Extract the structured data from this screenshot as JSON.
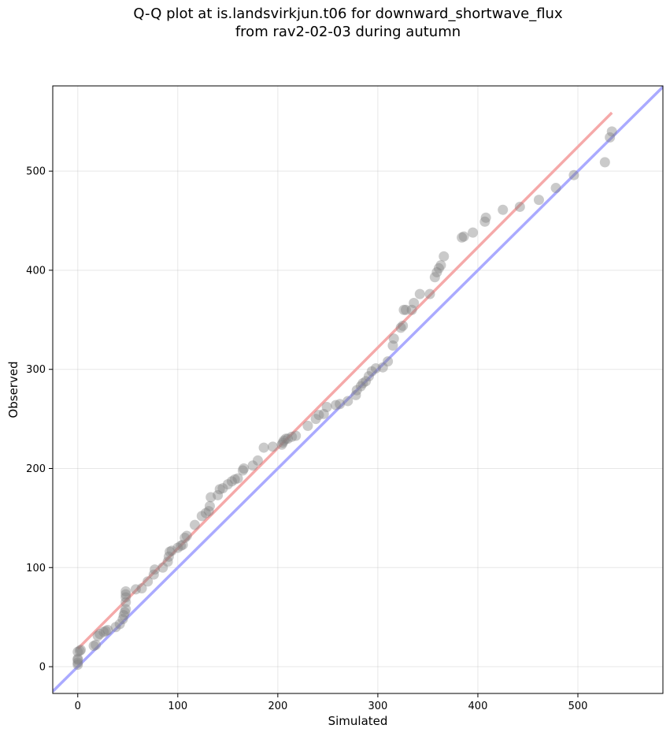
{
  "chart_data": {
    "type": "scatter",
    "title_lines": [
      "Q-Q plot at is.landsvirkjun.t06 for downward_shortwave_flux",
      "from rav2-02-03 during autumn"
    ],
    "xlabel": "Simulated",
    "ylabel": "Observed",
    "xlim": [
      -25,
      585
    ],
    "ylim": [
      -27,
      586
    ],
    "xticks": [
      0,
      100,
      200,
      300,
      400,
      500
    ],
    "yticks": [
      0,
      100,
      200,
      300,
      400,
      500
    ],
    "grid": true,
    "points_color": "#808080",
    "points": [
      [
        0,
        2
      ],
      [
        0,
        4
      ],
      [
        0,
        7
      ],
      [
        0,
        8
      ],
      [
        0,
        15
      ],
      [
        2,
        16
      ],
      [
        3,
        17
      ],
      [
        16,
        21
      ],
      [
        18,
        22
      ],
      [
        20,
        31
      ],
      [
        22,
        33
      ],
      [
        26,
        35
      ],
      [
        28,
        36
      ],
      [
        30,
        37
      ],
      [
        38,
        40
      ],
      [
        42,
        43
      ],
      [
        45,
        48
      ],
      [
        46,
        52
      ],
      [
        47,
        55
      ],
      [
        48,
        58
      ],
      [
        48,
        65
      ],
      [
        48,
        70
      ],
      [
        48,
        73
      ],
      [
        48,
        76
      ],
      [
        58,
        78
      ],
      [
        64,
        79
      ],
      [
        70,
        86
      ],
      [
        76,
        93
      ],
      [
        77,
        98
      ],
      [
        85,
        100
      ],
      [
        90,
        106
      ],
      [
        91,
        111
      ],
      [
        92,
        116
      ],
      [
        94,
        117
      ],
      [
        100,
        120
      ],
      [
        103,
        122
      ],
      [
        105,
        123
      ],
      [
        107,
        130
      ],
      [
        109,
        132
      ],
      [
        117,
        143
      ],
      [
        124,
        152
      ],
      [
        128,
        155
      ],
      [
        131,
        157
      ],
      [
        132,
        162
      ],
      [
        133,
        171
      ],
      [
        140,
        173
      ],
      [
        142,
        179
      ],
      [
        145,
        180
      ],
      [
        150,
        184
      ],
      [
        154,
        187
      ],
      [
        157,
        189
      ],
      [
        160,
        190
      ],
      [
        165,
        198
      ],
      [
        166,
        200
      ],
      [
        175,
        203
      ],
      [
        180,
        208
      ],
      [
        186,
        221
      ],
      [
        195,
        222
      ],
      [
        204,
        224
      ],
      [
        205,
        226
      ],
      [
        206,
        228
      ],
      [
        208,
        230
      ],
      [
        210,
        230
      ],
      [
        214,
        232
      ],
      [
        218,
        233
      ],
      [
        230,
        243
      ],
      [
        238,
        250
      ],
      [
        241,
        254
      ],
      [
        246,
        255
      ],
      [
        249,
        262
      ],
      [
        258,
        264
      ],
      [
        262,
        265
      ],
      [
        270,
        268
      ],
      [
        278,
        274
      ],
      [
        279,
        279
      ],
      [
        283,
        283
      ],
      [
        285,
        286
      ],
      [
        288,
        288
      ],
      [
        291,
        293
      ],
      [
        294,
        298
      ],
      [
        298,
        301
      ],
      [
        305,
        302
      ],
      [
        310,
        308
      ],
      [
        315,
        324
      ],
      [
        316,
        331
      ],
      [
        323,
        342
      ],
      [
        325,
        344
      ],
      [
        326,
        360
      ],
      [
        328,
        360
      ],
      [
        334,
        360
      ],
      [
        336,
        367
      ],
      [
        342,
        376
      ],
      [
        352,
        376
      ],
      [
        357,
        393
      ],
      [
        359,
        398
      ],
      [
        361,
        402
      ],
      [
        363,
        405
      ],
      [
        366,
        414
      ],
      [
        384,
        433
      ],
      [
        386,
        434
      ],
      [
        395,
        438
      ],
      [
        407,
        449
      ],
      [
        408,
        453
      ],
      [
        425,
        461
      ],
      [
        442,
        464
      ],
      [
        461,
        471
      ],
      [
        478,
        483
      ],
      [
        496,
        496
      ],
      [
        527,
        509
      ],
      [
        532,
        534
      ],
      [
        534,
        540
      ]
    ],
    "reference_lines": [
      {
        "kind": "identity",
        "color": "#aaaaff",
        "from": [
          -25,
          -25
        ],
        "to": [
          585,
          585
        ]
      },
      {
        "kind": "fit",
        "color": "#f5a9a9",
        "from": [
          0,
          18
        ],
        "to": [
          534,
          559
        ]
      }
    ]
  }
}
